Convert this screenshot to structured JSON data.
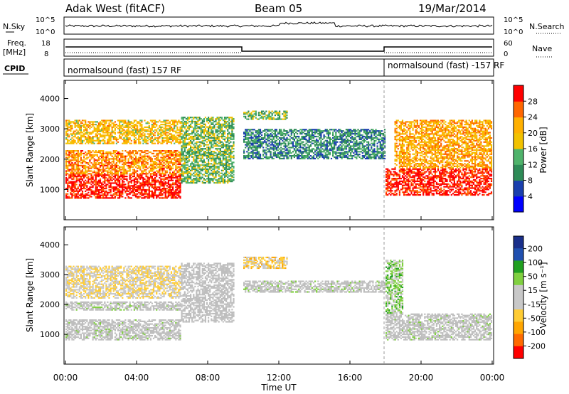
{
  "header": {
    "title": "Adak West (fitACF)",
    "beam": "Beam 05",
    "date": "19/Mar/2014"
  },
  "nsky_panel": {
    "left_label": "N.Sky",
    "right_label": "N.Search",
    "left_ticks": [
      "10^5",
      "10^0"
    ],
    "right_ticks": [
      "10^5",
      "10^0"
    ]
  },
  "freq_panel": {
    "label_top": "Freq.",
    "label_unit": "[MHz]",
    "left_ticks": [
      "18",
      "8"
    ],
    "right_ticks": [
      "60",
      "0"
    ],
    "right_label": "Nave"
  },
  "cpid_panel": {
    "label": "CPID",
    "segments": [
      {
        "text": "normalsound (fast) 157 RF",
        "start_hour": 0
      },
      {
        "text": "normalsound (fast) -157 RF",
        "start_hour": 18
      }
    ]
  },
  "colors": {
    "power_scale": [
      "#0000ff",
      "#1a3fae",
      "#2e8b57",
      "#4fb36b",
      "#f2c200",
      "#ffb000",
      "#ff6600",
      "#ff0000"
    ],
    "velocity_scale": [
      "#ff0000",
      "#ff6a00",
      "#ffa500",
      "#ffcc33",
      "#c8c8c8",
      "#c8c8c8",
      "#80d040",
      "#20a020",
      "#2050b0",
      "#1a2f8a"
    ],
    "ground_scatter": "#bebebe"
  },
  "chart_data": [
    {
      "type": "heatmap",
      "name": "power-panel",
      "ylabel": "Slant Range [km]",
      "ylim": [
        0,
        4600
      ],
      "yticks": [
        1000,
        2000,
        3000,
        4000
      ],
      "xlim": [
        0,
        24
      ],
      "colorbar": {
        "label": "Power [dB]",
        "ticks": [
          "4",
          "8",
          "12",
          "16",
          "20",
          "24",
          "28"
        ],
        "range": [
          0,
          32
        ]
      },
      "echo_regions": [
        {
          "t0": 0.0,
          "t1": 6.5,
          "r0": 700,
          "r1": 1500,
          "level": 30
        },
        {
          "t0": 0.0,
          "t1": 6.5,
          "r0": 1500,
          "r1": 2300,
          "level": 24
        },
        {
          "t0": 0.0,
          "t1": 6.5,
          "r0": 2500,
          "r1": 3300,
          "level": 20
        },
        {
          "t0": 6.5,
          "t1": 9.5,
          "r0": 1200,
          "r1": 3400,
          "level": 14
        },
        {
          "t0": 10.0,
          "t1": 18.0,
          "r0": 2000,
          "r1": 3000,
          "level": 10
        },
        {
          "t0": 10.0,
          "t1": 12.5,
          "r0": 3300,
          "r1": 3600,
          "level": 14
        },
        {
          "t0": 18.0,
          "t1": 24.0,
          "r0": 800,
          "r1": 1700,
          "level": 30
        },
        {
          "t0": 18.5,
          "t1": 24.0,
          "r0": 1700,
          "r1": 3300,
          "level": 22
        }
      ]
    },
    {
      "type": "heatmap",
      "name": "velocity-panel",
      "ylabel": "Slant Range [km]",
      "xlabel": "Time UT",
      "ylim": [
        0,
        4600
      ],
      "yticks": [
        1000,
        2000,
        3000,
        4000
      ],
      "xlim": [
        0,
        24
      ],
      "xticks": [
        "00:00",
        "04:00",
        "08:00",
        "12:00",
        "16:00",
        "20:00",
        "00:00"
      ],
      "colorbar": {
        "label": "Velocity [m s⁻¹]",
        "ticks": [
          "200",
          "100",
          "50",
          "15",
          "-15",
          "-50",
          "-100",
          "-200"
        ],
        "range": [
          -250,
          250
        ]
      },
      "echo_regions": [
        {
          "t0": 0.0,
          "t1": 6.5,
          "r0": 800,
          "r1": 1500,
          "velocity": 0,
          "ground": true
        },
        {
          "t0": 0.0,
          "t1": 6.5,
          "r0": 1800,
          "r1": 2100,
          "velocity": 0,
          "ground": true
        },
        {
          "t0": 0.0,
          "t1": 6.5,
          "r0": 2200,
          "r1": 3300,
          "velocity": -40
        },
        {
          "t0": 6.5,
          "t1": 9.5,
          "r0": 1400,
          "r1": 3400,
          "velocity": -30,
          "ground": true
        },
        {
          "t0": 10.0,
          "t1": 18.0,
          "r0": 2400,
          "r1": 2800,
          "velocity": 0,
          "ground": true
        },
        {
          "t0": 10.0,
          "t1": 12.5,
          "r0": 3200,
          "r1": 3600,
          "velocity": -60
        },
        {
          "t0": 18.0,
          "t1": 24.0,
          "r0": 800,
          "r1": 1700,
          "velocity": 0,
          "ground": true
        },
        {
          "t0": 18.0,
          "t1": 19.0,
          "r0": 1700,
          "r1": 3500,
          "velocity": 60
        }
      ]
    }
  ]
}
